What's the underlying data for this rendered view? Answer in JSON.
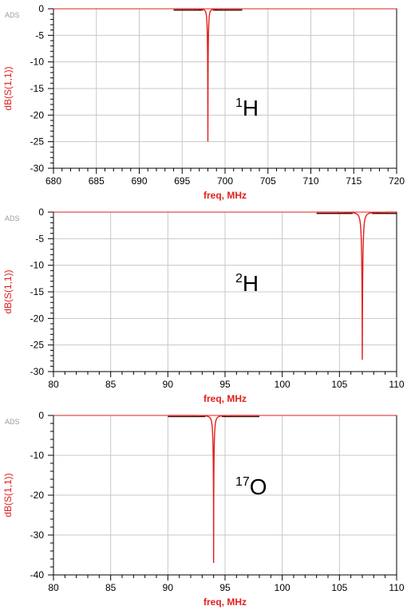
{
  "chart_data": [
    {
      "type": "line",
      "watermark": "ADS",
      "xlabel": "freq, MHz",
      "ylabel": "dB(S(1,1))",
      "xlim": [
        680,
        720
      ],
      "ylim": [
        -30,
        0
      ],
      "xticks": [
        680,
        685,
        690,
        695,
        700,
        705,
        710,
        715,
        720
      ],
      "yticks": [
        0,
        -5,
        -10,
        -15,
        -20,
        -25,
        -30
      ],
      "x_minor_per_major": 5,
      "y_minor_per_major": 5,
      "grid": true,
      "annotation": {
        "sup": "1",
        "base": "H"
      },
      "series": [
        {
          "color": "#e0201e",
          "x_range": [
            694,
            702
          ],
          "resonance_x": 698.0,
          "min_db": -25.0,
          "halfwidth": 0.1,
          "baseline": [
            -0.25,
            -0.05
          ]
        }
      ]
    },
    {
      "type": "line",
      "watermark": "ADS",
      "xlabel": "freq, MHz",
      "ylabel": "dB(S(1,1))",
      "xlim": [
        80,
        110
      ],
      "ylim": [
        -30,
        0
      ],
      "xticks": [
        80,
        85,
        90,
        95,
        100,
        105,
        110
      ],
      "yticks": [
        0,
        -5,
        -10,
        -15,
        -20,
        -25,
        -30
      ],
      "x_minor_per_major": 5,
      "y_minor_per_major": 5,
      "grid": true,
      "annotation": {
        "sup": "2",
        "base": "H"
      },
      "series": [
        {
          "color": "#e0201e",
          "x_range": [
            103,
            110
          ],
          "resonance_x": 107.0,
          "min_db": -28.5,
          "halfwidth": 0.14,
          "baseline": [
            -0.25,
            -0.05
          ]
        }
      ]
    },
    {
      "type": "line",
      "watermark": "ADS",
      "xlabel": "freq, MHz",
      "ylabel": "dB(S(1,1))",
      "xlim": [
        80,
        110
      ],
      "ylim": [
        -40,
        0
      ],
      "xticks": [
        80,
        85,
        90,
        95,
        100,
        105,
        110
      ],
      "yticks": [
        0,
        -10,
        -20,
        -30,
        -40
      ],
      "x_minor_per_major": 5,
      "y_minor_per_major": 5,
      "grid": true,
      "annotation": {
        "sup": "17",
        "base": "O"
      },
      "series": [
        {
          "color": "#e0201e",
          "x_range": [
            90,
            98
          ],
          "resonance_x": 94.0,
          "min_db": -37.0,
          "halfwidth": 0.12,
          "baseline": [
            -0.3,
            -0.05
          ]
        }
      ]
    }
  ]
}
